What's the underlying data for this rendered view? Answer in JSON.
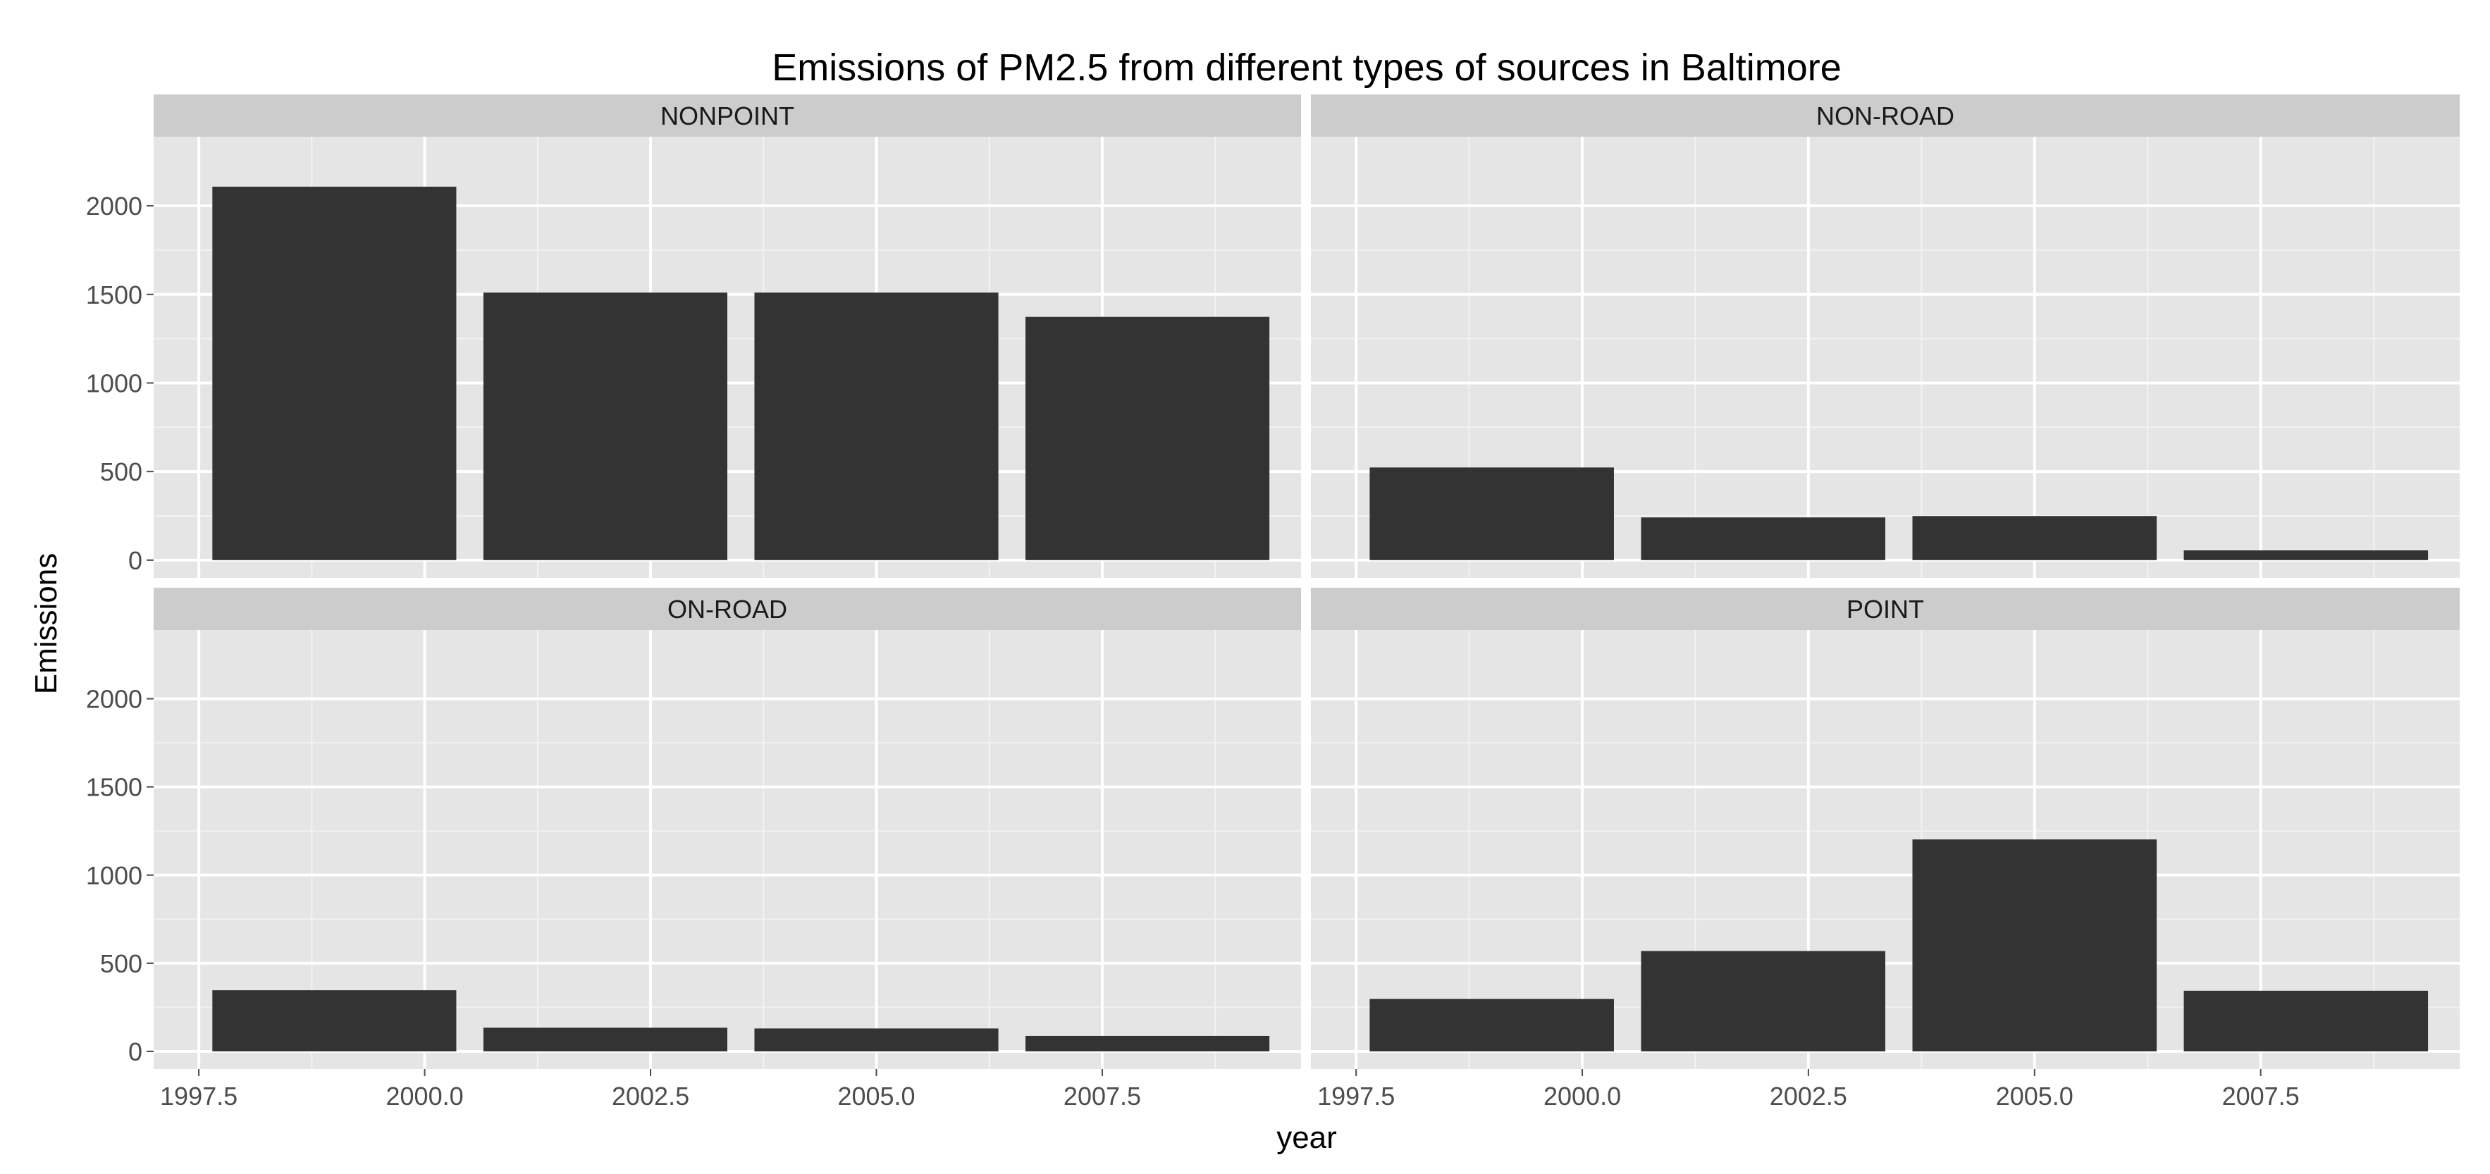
{
  "chart_data": {
    "type": "bar",
    "title": "Emissions of PM2.5 from different types of sources in Baltimore",
    "xlabel": "year",
    "ylabel": "Emissions",
    "xlim": [
      1997.0,
      2009.7
    ],
    "ylim": [
      -100,
      2390
    ],
    "x_ticks": [
      "1997.5",
      "2000.0",
      "2002.5",
      "2005.0",
      "2007.5"
    ],
    "y_ticks": [
      "0",
      "500",
      "1000",
      "1500",
      "2000"
    ],
    "x": [
      1999,
      2002,
      2005,
      2008
    ],
    "bar_width": 2.7,
    "grid": true,
    "bar_color": "#333333",
    "panel_background": "#e5e5e5",
    "strip_background": "#cccccc",
    "facets": [
      {
        "name": "NONPOINT",
        "values": [
          2108,
          1510,
          1510,
          1373
        ]
      },
      {
        "name": "NON-ROAD",
        "values": [
          523,
          241,
          249,
          55
        ]
      },
      {
        "name": "ON-ROAD",
        "values": [
          347,
          134,
          130,
          88
        ]
      },
      {
        "name": "POINT",
        "values": [
          297,
          569,
          1202,
          344
        ]
      }
    ]
  }
}
